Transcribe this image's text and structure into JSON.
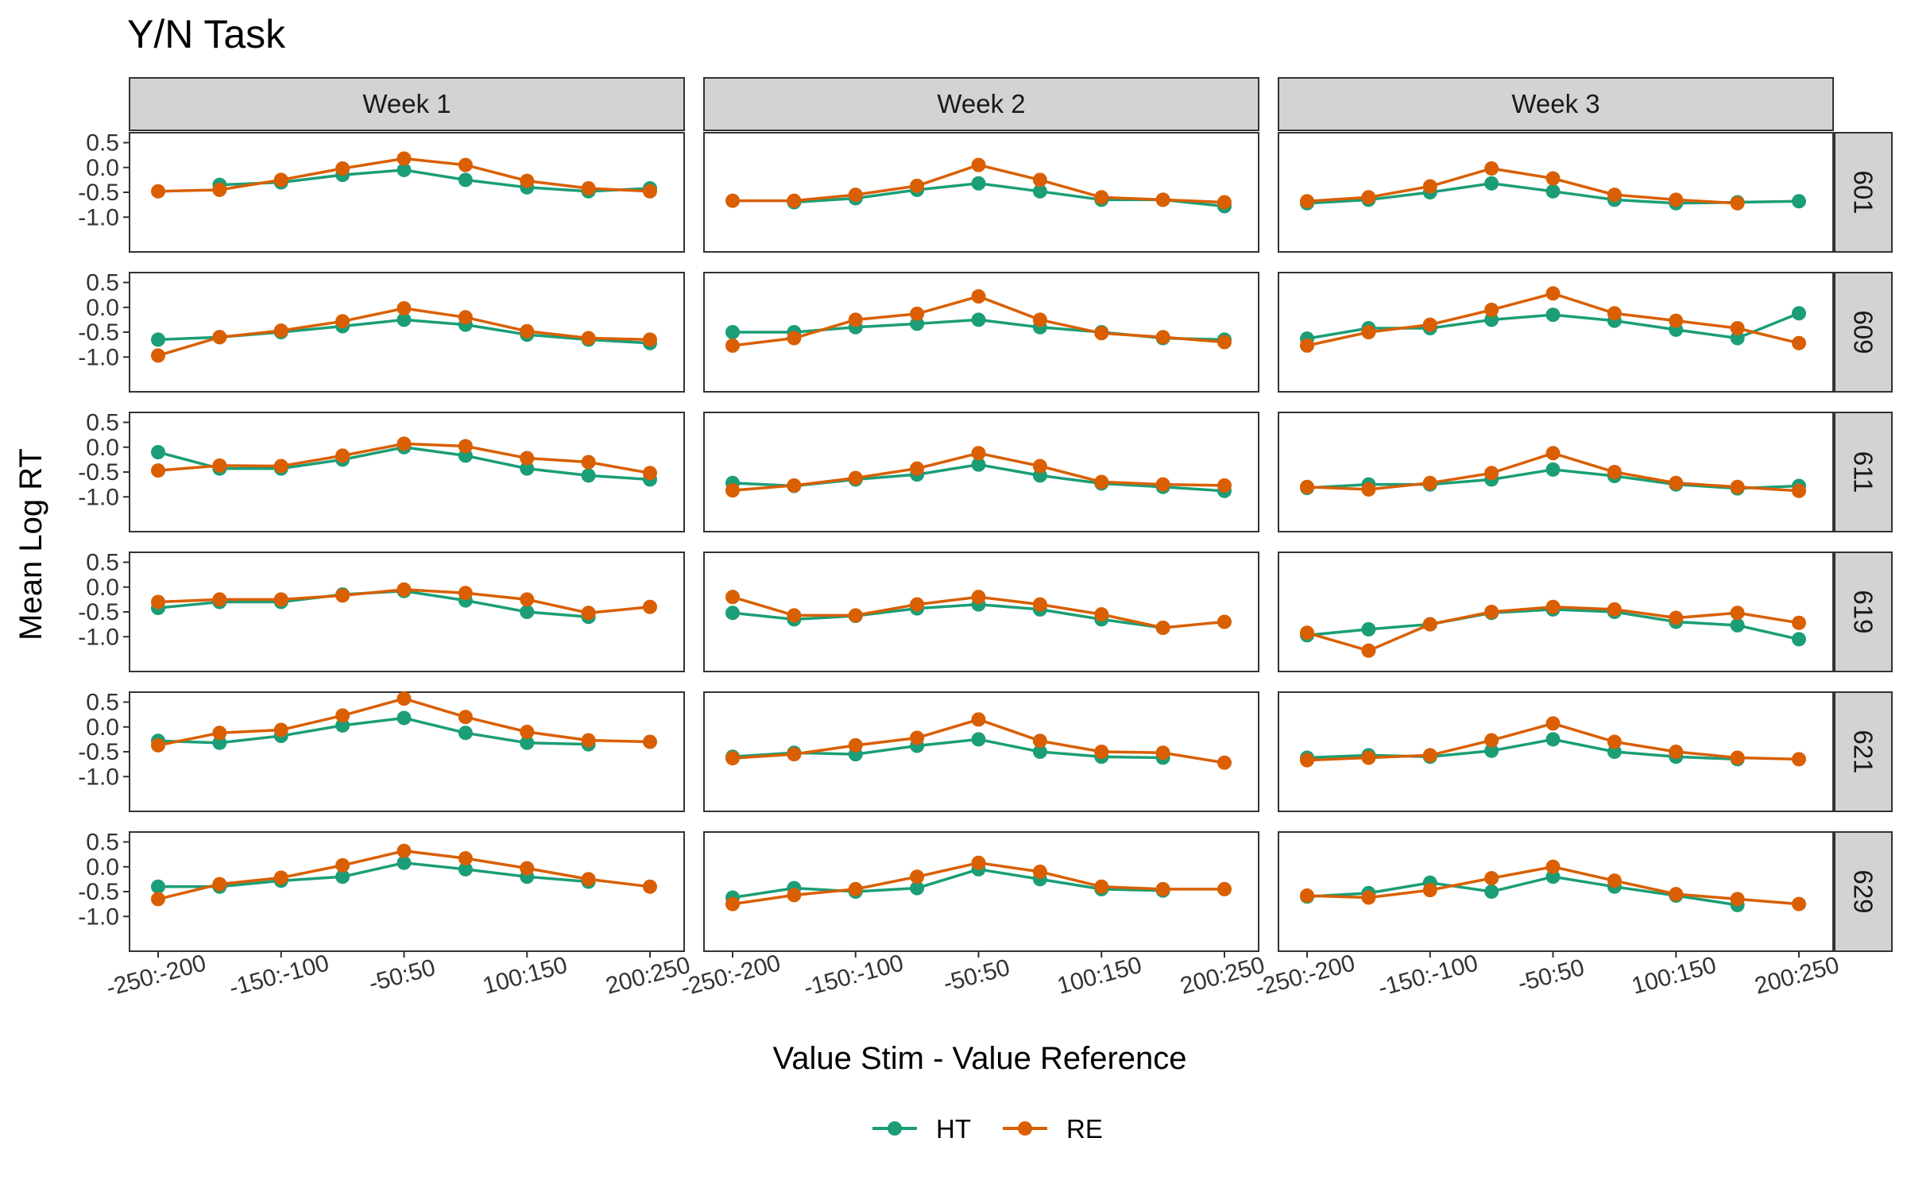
{
  "chart_data": {
    "type": "line",
    "title": "Y/N Task",
    "xlabel": "Value Stim - Value Reference",
    "ylabel": "Mean Log RT",
    "x_ticks": [
      "-250:-200",
      "-150:-100",
      "-50:50",
      "100:150",
      "200:250"
    ],
    "y_ticks": [
      "0.5",
      "0.0",
      "-0.5",
      "-1.0"
    ],
    "ylim": [
      -1.7,
      0.7
    ],
    "x_categories": [
      "-250:-200",
      "-200:-150",
      "-150:-100",
      "-100:-50",
      "-50:50",
      "50:100",
      "100:150",
      "150:200",
      "200:250"
    ],
    "col_labels": [
      "Week 1",
      "Week 2",
      "Week 3"
    ],
    "row_labels": [
      "601",
      "609",
      "611",
      "619",
      "621",
      "629"
    ],
    "legend": {
      "position": "bottom",
      "items": [
        "HT",
        "RE"
      ]
    },
    "colors": {
      "HT": "#1b9e77",
      "RE": "#d95f02"
    },
    "grid": false,
    "panels": [
      {
        "subject": "601",
        "week": "Week 1",
        "HT": [
          null,
          -0.35,
          -0.3,
          -0.15,
          -0.05,
          -0.25,
          -0.4,
          -0.48,
          -0.42
        ],
        "RE": [
          -0.48,
          -0.45,
          -0.25,
          -0.02,
          0.18,
          0.05,
          -0.27,
          -0.42,
          -0.48
        ]
      },
      {
        "subject": "601",
        "week": "Week 2",
        "HT": [
          null,
          -0.7,
          -0.62,
          -0.45,
          -0.32,
          -0.48,
          -0.65,
          -0.65,
          -0.78
        ],
        "RE": [
          -0.67,
          -0.67,
          -0.55,
          -0.37,
          0.05,
          -0.25,
          -0.6,
          -0.65,
          -0.7
        ]
      },
      {
        "subject": "601",
        "week": "Week 3",
        "HT": [
          -0.72,
          -0.65,
          -0.5,
          -0.32,
          -0.48,
          -0.65,
          -0.72,
          -0.7,
          -0.68
        ],
        "RE": [
          -0.68,
          -0.6,
          -0.38,
          -0.02,
          -0.22,
          -0.55,
          -0.65,
          -0.72,
          null
        ]
      },
      {
        "subject": "609",
        "week": "Week 1",
        "HT": [
          -0.65,
          -0.6,
          -0.5,
          -0.38,
          -0.25,
          -0.35,
          -0.55,
          -0.65,
          -0.72
        ],
        "RE": [
          -0.97,
          -0.6,
          -0.47,
          -0.28,
          -0.02,
          -0.2,
          -0.48,
          -0.62,
          -0.65
        ]
      },
      {
        "subject": "609",
        "week": "Week 2",
        "HT": [
          -0.5,
          -0.5,
          -0.4,
          -0.33,
          -0.25,
          -0.4,
          -0.5,
          -0.62,
          -0.65
        ],
        "RE": [
          -0.77,
          -0.62,
          -0.25,
          -0.13,
          0.22,
          -0.25,
          -0.52,
          -0.6,
          -0.7
        ]
      },
      {
        "subject": "609",
        "week": "Week 3",
        "HT": [
          -0.63,
          -0.42,
          -0.42,
          -0.25,
          -0.15,
          -0.27,
          -0.45,
          -0.62,
          -0.12
        ],
        "RE": [
          -0.77,
          -0.5,
          -0.35,
          -0.05,
          0.28,
          -0.12,
          -0.27,
          -0.42,
          -0.72
        ]
      },
      {
        "subject": "611",
        "week": "Week 1",
        "HT": [
          -0.1,
          -0.43,
          -0.43,
          -0.25,
          0.0,
          -0.17,
          -0.43,
          -0.57,
          -0.65
        ],
        "RE": [
          -0.47,
          -0.37,
          -0.38,
          -0.17,
          0.07,
          0.02,
          -0.22,
          -0.3,
          -0.52
        ]
      },
      {
        "subject": "611",
        "week": "Week 2",
        "HT": [
          -0.72,
          -0.78,
          -0.65,
          -0.55,
          -0.35,
          -0.57,
          -0.73,
          -0.8,
          -0.88
        ],
        "RE": [
          -0.87,
          -0.77,
          -0.62,
          -0.43,
          -0.12,
          -0.38,
          -0.7,
          -0.75,
          -0.77
        ]
      },
      {
        "subject": "611",
        "week": "Week 3",
        "HT": [
          -0.82,
          -0.75,
          -0.75,
          -0.65,
          -0.45,
          -0.58,
          -0.75,
          -0.83,
          -0.78
        ],
        "RE": [
          -0.8,
          -0.85,
          -0.72,
          -0.52,
          -0.12,
          -0.5,
          -0.72,
          -0.8,
          -0.88
        ]
      },
      {
        "subject": "619",
        "week": "Week 1",
        "HT": [
          -0.42,
          -0.3,
          -0.3,
          -0.15,
          -0.08,
          -0.27,
          -0.5,
          -0.6,
          null
        ],
        "RE": [
          -0.3,
          -0.25,
          -0.25,
          -0.17,
          -0.05,
          -0.12,
          -0.25,
          -0.52,
          -0.4
        ]
      },
      {
        "subject": "619",
        "week": "Week 2",
        "HT": [
          -0.52,
          -0.65,
          -0.58,
          -0.43,
          -0.35,
          -0.45,
          -0.65,
          -0.82,
          null
        ],
        "RE": [
          -0.2,
          -0.57,
          -0.57,
          -0.35,
          -0.2,
          -0.35,
          -0.55,
          -0.82,
          -0.7
        ]
      },
      {
        "subject": "619",
        "week": "Week 3",
        "HT": [
          -0.97,
          -0.85,
          -0.75,
          -0.52,
          -0.45,
          -0.5,
          -0.7,
          -0.77,
          -1.05
        ],
        "RE": [
          -0.92,
          -1.28,
          -0.75,
          -0.5,
          -0.4,
          -0.45,
          -0.62,
          -0.52,
          -0.72
        ]
      },
      {
        "subject": "621",
        "week": "Week 1",
        "HT": [
          -0.28,
          -0.32,
          -0.18,
          0.03,
          0.18,
          -0.12,
          -0.32,
          -0.35,
          null
        ],
        "RE": [
          -0.37,
          -0.12,
          -0.06,
          0.23,
          0.57,
          0.2,
          -0.1,
          -0.27,
          -0.3
        ]
      },
      {
        "subject": "621",
        "week": "Week 2",
        "HT": [
          -0.6,
          -0.52,
          -0.55,
          -0.38,
          -0.25,
          -0.5,
          -0.6,
          -0.62,
          null
        ],
        "RE": [
          -0.63,
          -0.55,
          -0.37,
          -0.22,
          0.15,
          -0.28,
          -0.5,
          -0.52,
          -0.72
        ]
      },
      {
        "subject": "621",
        "week": "Week 3",
        "HT": [
          -0.62,
          -0.57,
          -0.6,
          -0.48,
          -0.25,
          -0.5,
          -0.6,
          -0.65,
          null
        ],
        "RE": [
          -0.67,
          -0.62,
          -0.57,
          -0.27,
          0.07,
          -0.3,
          -0.5,
          -0.62,
          -0.65
        ]
      },
      {
        "subject": "629",
        "week": "Week 1",
        "HT": [
          -0.4,
          -0.4,
          -0.28,
          -0.2,
          0.08,
          -0.05,
          -0.2,
          -0.3,
          null
        ],
        "RE": [
          -0.65,
          -0.35,
          -0.22,
          0.03,
          0.32,
          0.17,
          -0.03,
          -0.25,
          -0.4
        ]
      },
      {
        "subject": "629",
        "week": "Week 2",
        "HT": [
          -0.62,
          -0.43,
          -0.5,
          -0.43,
          -0.05,
          -0.25,
          -0.45,
          -0.48,
          null
        ],
        "RE": [
          -0.75,
          -0.57,
          -0.45,
          -0.2,
          0.08,
          -0.1,
          -0.4,
          -0.45,
          -0.45
        ]
      },
      {
        "subject": "629",
        "week": "Week 3",
        "HT": [
          -0.6,
          -0.53,
          -0.32,
          -0.5,
          -0.2,
          -0.4,
          -0.58,
          -0.77,
          null
        ],
        "RE": [
          -0.58,
          -0.62,
          -0.47,
          -0.23,
          0.0,
          -0.28,
          -0.55,
          -0.65,
          -0.75
        ]
      }
    ]
  }
}
